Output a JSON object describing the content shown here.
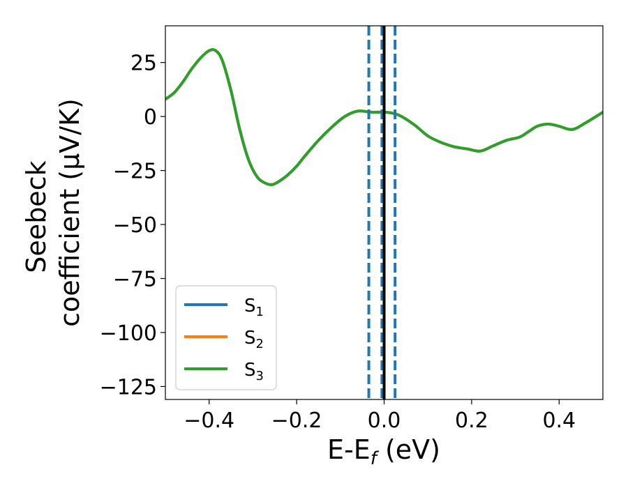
{
  "chart_data": {
    "type": "line",
    "xlabel": "E-E",
    "xlabel_sub": "f",
    "xlabel_unit": " (eV)",
    "ylabel_line1": "Seebeck",
    "ylabel_line2": "coefficient  (μV/K)",
    "xlim": [
      -0.5,
      0.5
    ],
    "ylim": [
      -131,
      42
    ],
    "xticks": [
      -0.4,
      -0.2,
      0.0,
      0.2,
      0.4
    ],
    "xtick_labels": [
      "−0.4",
      "−0.2",
      "0.0",
      "0.2",
      "0.4"
    ],
    "yticks": [
      25,
      0,
      -25,
      -50,
      -75,
      -100,
      -125
    ],
    "ytick_labels": [
      "25",
      "0",
      "−25",
      "−50",
      "−75",
      "−100",
      "−125"
    ],
    "grid": false,
    "legend_position": "lower-left",
    "series": [
      {
        "name": "S",
        "name_sub": "1",
        "color": "#1f77b4",
        "x": [
          -0.5,
          -0.48,
          -0.46,
          -0.44,
          -0.42,
          -0.4,
          -0.385,
          -0.37,
          -0.35,
          -0.33,
          -0.31,
          -0.29,
          -0.27,
          -0.255,
          -0.24,
          -0.22,
          -0.2,
          -0.18,
          -0.15,
          -0.12,
          -0.09,
          -0.06,
          -0.03,
          0.0,
          0.02,
          0.04,
          0.07,
          0.1,
          0.13,
          0.16,
          0.19,
          0.22,
          0.25,
          0.28,
          0.31,
          0.33,
          0.35,
          0.375,
          0.4,
          0.43,
          0.46,
          0.5
        ],
        "y": [
          8,
          11,
          16,
          22,
          27,
          30.5,
          30.5,
          26,
          12,
          -6,
          -20,
          -28,
          -31,
          -31.5,
          -30,
          -27,
          -23,
          -18,
          -11,
          -5,
          0,
          2.5,
          2,
          2,
          1.5,
          0,
          -4,
          -9,
          -12,
          -14,
          -15,
          -16,
          -13.5,
          -11,
          -9.5,
          -7,
          -4.5,
          -3.5,
          -4.5,
          -6,
          -3,
          2
        ]
      },
      {
        "name": "S",
        "name_sub": "2",
        "color": "#ff7f0e",
        "x": [
          -0.5,
          -0.48,
          -0.46,
          -0.44,
          -0.42,
          -0.4,
          -0.385,
          -0.37,
          -0.35,
          -0.33,
          -0.31,
          -0.29,
          -0.27,
          -0.255,
          -0.24,
          -0.22,
          -0.2,
          -0.18,
          -0.15,
          -0.12,
          -0.09,
          -0.06,
          -0.03,
          0.0,
          0.02,
          0.04,
          0.07,
          0.1,
          0.13,
          0.16,
          0.19,
          0.22,
          0.25,
          0.28,
          0.31,
          0.33,
          0.35,
          0.375,
          0.4,
          0.43,
          0.46,
          0.5
        ],
        "y": [
          8,
          11,
          16,
          22,
          27,
          30.5,
          30.5,
          26,
          12,
          -6,
          -20,
          -28,
          -31,
          -31.5,
          -30,
          -27,
          -23,
          -18,
          -11,
          -5,
          0,
          2.5,
          2,
          2,
          1.5,
          0,
          -4,
          -9,
          -12,
          -14,
          -15,
          -16,
          -13.5,
          -11,
          -9.5,
          -7,
          -4.5,
          -3.5,
          -4.5,
          -6,
          -3,
          2
        ]
      },
      {
        "name": "S",
        "name_sub": "3",
        "color": "#2ca02c",
        "x": [
          -0.5,
          -0.48,
          -0.46,
          -0.44,
          -0.42,
          -0.4,
          -0.385,
          -0.37,
          -0.35,
          -0.33,
          -0.31,
          -0.29,
          -0.27,
          -0.255,
          -0.24,
          -0.22,
          -0.2,
          -0.18,
          -0.15,
          -0.12,
          -0.09,
          -0.06,
          -0.03,
          0.0,
          0.02,
          0.04,
          0.07,
          0.1,
          0.13,
          0.16,
          0.19,
          0.22,
          0.25,
          0.28,
          0.31,
          0.33,
          0.35,
          0.375,
          0.4,
          0.43,
          0.46,
          0.5
        ],
        "y": [
          8,
          11,
          16,
          22,
          27,
          30.5,
          30.5,
          26,
          12,
          -6,
          -20,
          -28,
          -31,
          -31.5,
          -30,
          -27,
          -23,
          -18,
          -11,
          -5,
          0,
          2.5,
          2,
          2,
          1.5,
          0,
          -4,
          -9,
          -12,
          -14,
          -15,
          -16,
          -13.5,
          -11,
          -9.5,
          -7,
          -4.5,
          -3.5,
          -4.5,
          -6,
          -3,
          2
        ]
      }
    ],
    "vlines": [
      {
        "x": -0.035,
        "style": "dashed",
        "color": "#1f77b4"
      },
      {
        "x": -0.005,
        "style": "dashed",
        "color": "#1f77b4"
      },
      {
        "x": 0.0,
        "style": "solid",
        "color": "#000000"
      },
      {
        "x": 0.025,
        "style": "dashed",
        "color": "#1f77b4"
      }
    ]
  }
}
